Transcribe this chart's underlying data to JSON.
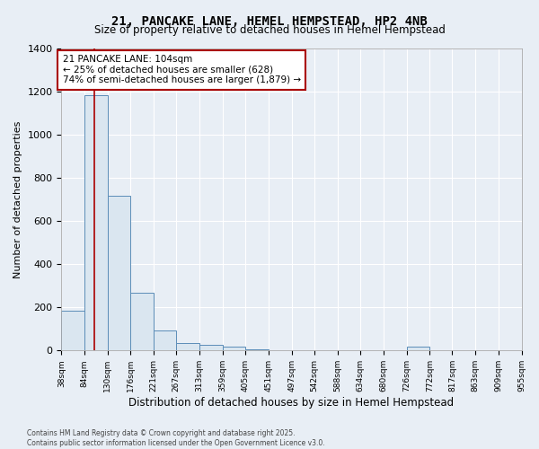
{
  "title": "21, PANCAKE LANE, HEMEL HEMPSTEAD, HP2 4NB",
  "subtitle": "Size of property relative to detached houses in Hemel Hempstead",
  "xlabel": "Distribution of detached houses by size in Hemel Hempstead",
  "ylabel": "Number of detached properties",
  "annotation_line1": "21 PANCAKE LANE: 104sqm",
  "annotation_line2": "← 25% of detached houses are smaller (628)",
  "annotation_line3": "74% of semi-detached houses are larger (1,879) →",
  "property_size": 104,
  "bar_color": "#dae6f0",
  "bar_edge_color": "#5b8db8",
  "red_line_color": "#aa0000",
  "background_color": "#e8eef5",
  "grid_color": "#ffffff",
  "ylim": [
    0,
    1400
  ],
  "yticks": [
    0,
    200,
    400,
    600,
    800,
    1000,
    1200,
    1400
  ],
  "bin_edges": [
    38,
    84,
    130,
    176,
    221,
    267,
    313,
    359,
    405,
    451,
    497,
    542,
    588,
    634,
    680,
    726,
    772,
    817,
    863,
    909,
    955
  ],
  "bar_heights": [
    185,
    1185,
    718,
    268,
    95,
    35,
    28,
    18,
    6,
    2,
    0,
    0,
    0,
    0,
    0,
    18,
    0,
    0,
    0,
    0
  ],
  "footer_line1": "Contains HM Land Registry data © Crown copyright and database right 2025.",
  "footer_line2": "Contains public sector information licensed under the Open Government Licence v3.0."
}
